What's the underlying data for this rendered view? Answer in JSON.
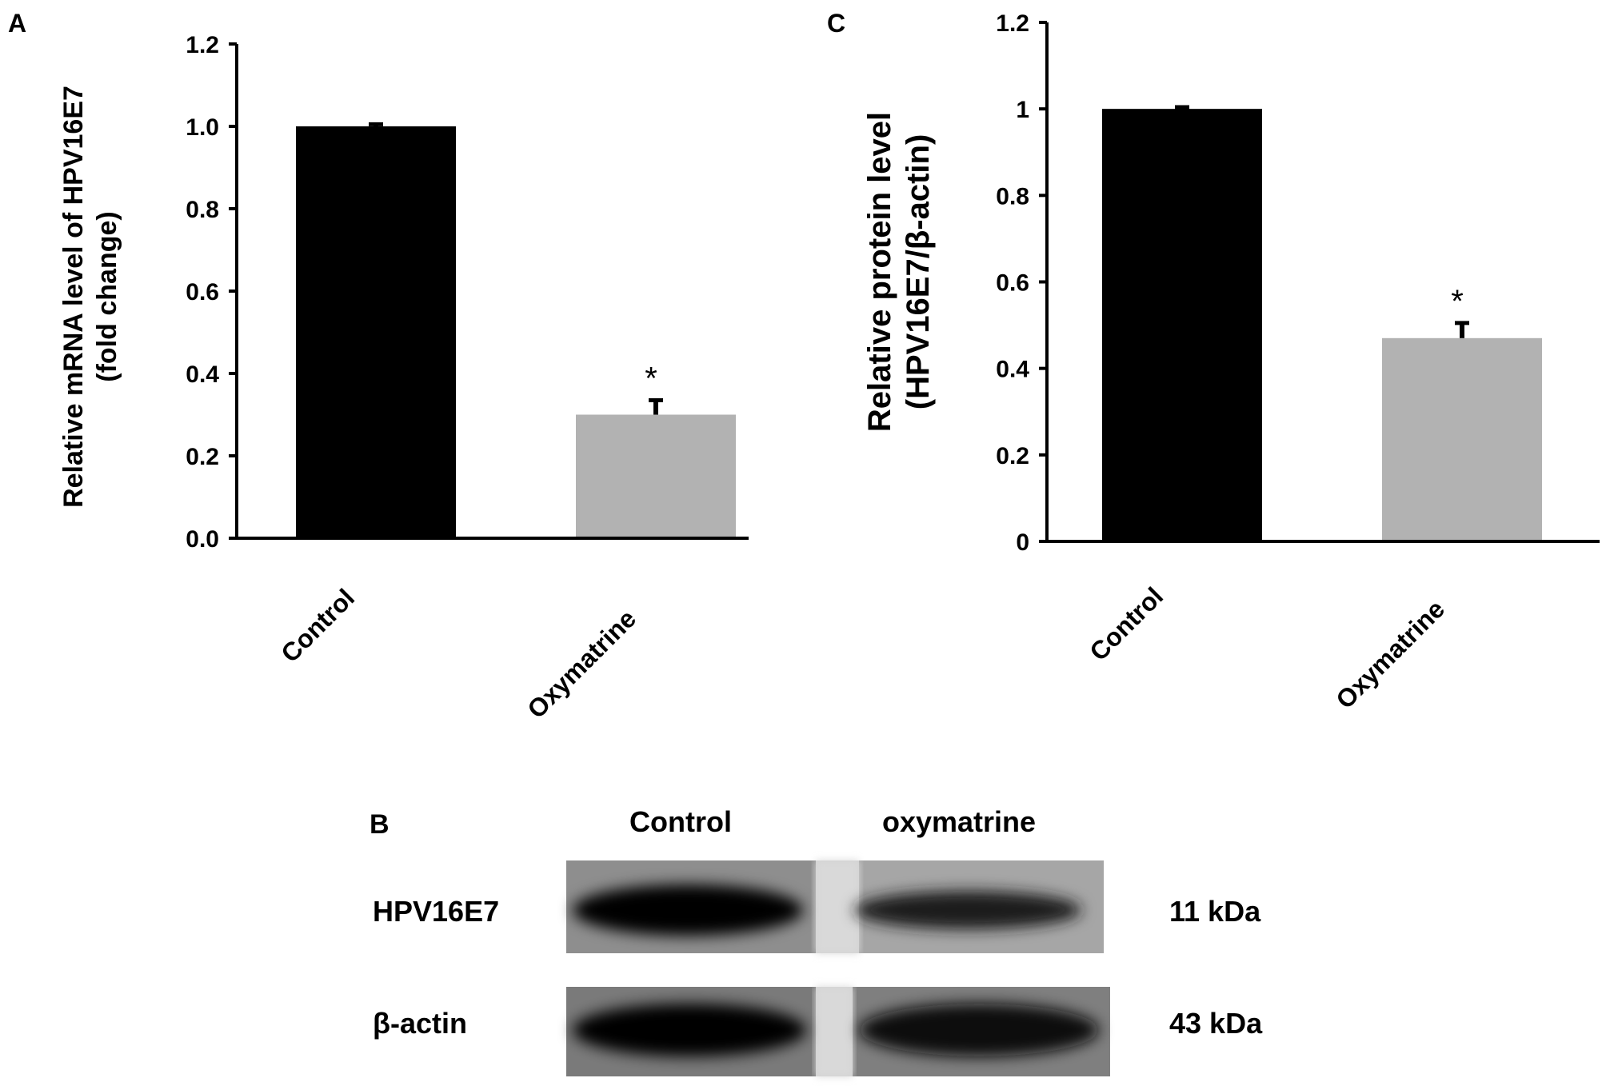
{
  "panels": {
    "a": {
      "label": "A"
    },
    "b": {
      "label": "B"
    },
    "c": {
      "label": "C"
    }
  },
  "colors": {
    "control": "#000000",
    "oxymatrine": "#b2b2b2",
    "axis": "#000000"
  },
  "chart_data": [
    {
      "panel": "A",
      "type": "bar",
      "categories": [
        "Control",
        "Oxymatrine"
      ],
      "values": [
        1.0,
        0.3
      ],
      "errors": [
        0.005,
        0.035
      ],
      "annotations": [
        "",
        "*"
      ],
      "ylabel": "Relative mRNA level of HPV16E7",
      "ylabel2": "(fold change)",
      "ylim": [
        0,
        1.2
      ],
      "yticks": [
        "0.0",
        "0.2",
        "0.4",
        "0.6",
        "0.8",
        "1.0",
        "1.2"
      ],
      "bar_colors": [
        "#000000",
        "#b2b2b2"
      ]
    },
    {
      "panel": "C",
      "type": "bar",
      "categories": [
        "Control",
        "Oxymatrine"
      ],
      "values": [
        1.0,
        0.47
      ],
      "errors": [
        0.004,
        0.035
      ],
      "annotations": [
        "",
        "*"
      ],
      "ylabel": "Relative  protein level",
      "ylabel2": "(HPV16E7/β-actin)",
      "ylim": [
        0,
        1.2
      ],
      "yticks": [
        "0",
        "0.2",
        "0.4",
        "0.6",
        "0.8",
        "1",
        "1.2"
      ],
      "bar_colors": [
        "#000000",
        "#b2b2b2"
      ]
    }
  ],
  "western_blot": {
    "lanes": [
      "Control",
      "oxymatrine"
    ],
    "rows": [
      {
        "protein": "HPV16E7",
        "size": "11 kDa",
        "band_intensity": [
          1.0,
          0.6
        ]
      },
      {
        "protein": "β-actin",
        "size": "43 kDa",
        "band_intensity": [
          1.0,
          1.0
        ]
      }
    ]
  }
}
